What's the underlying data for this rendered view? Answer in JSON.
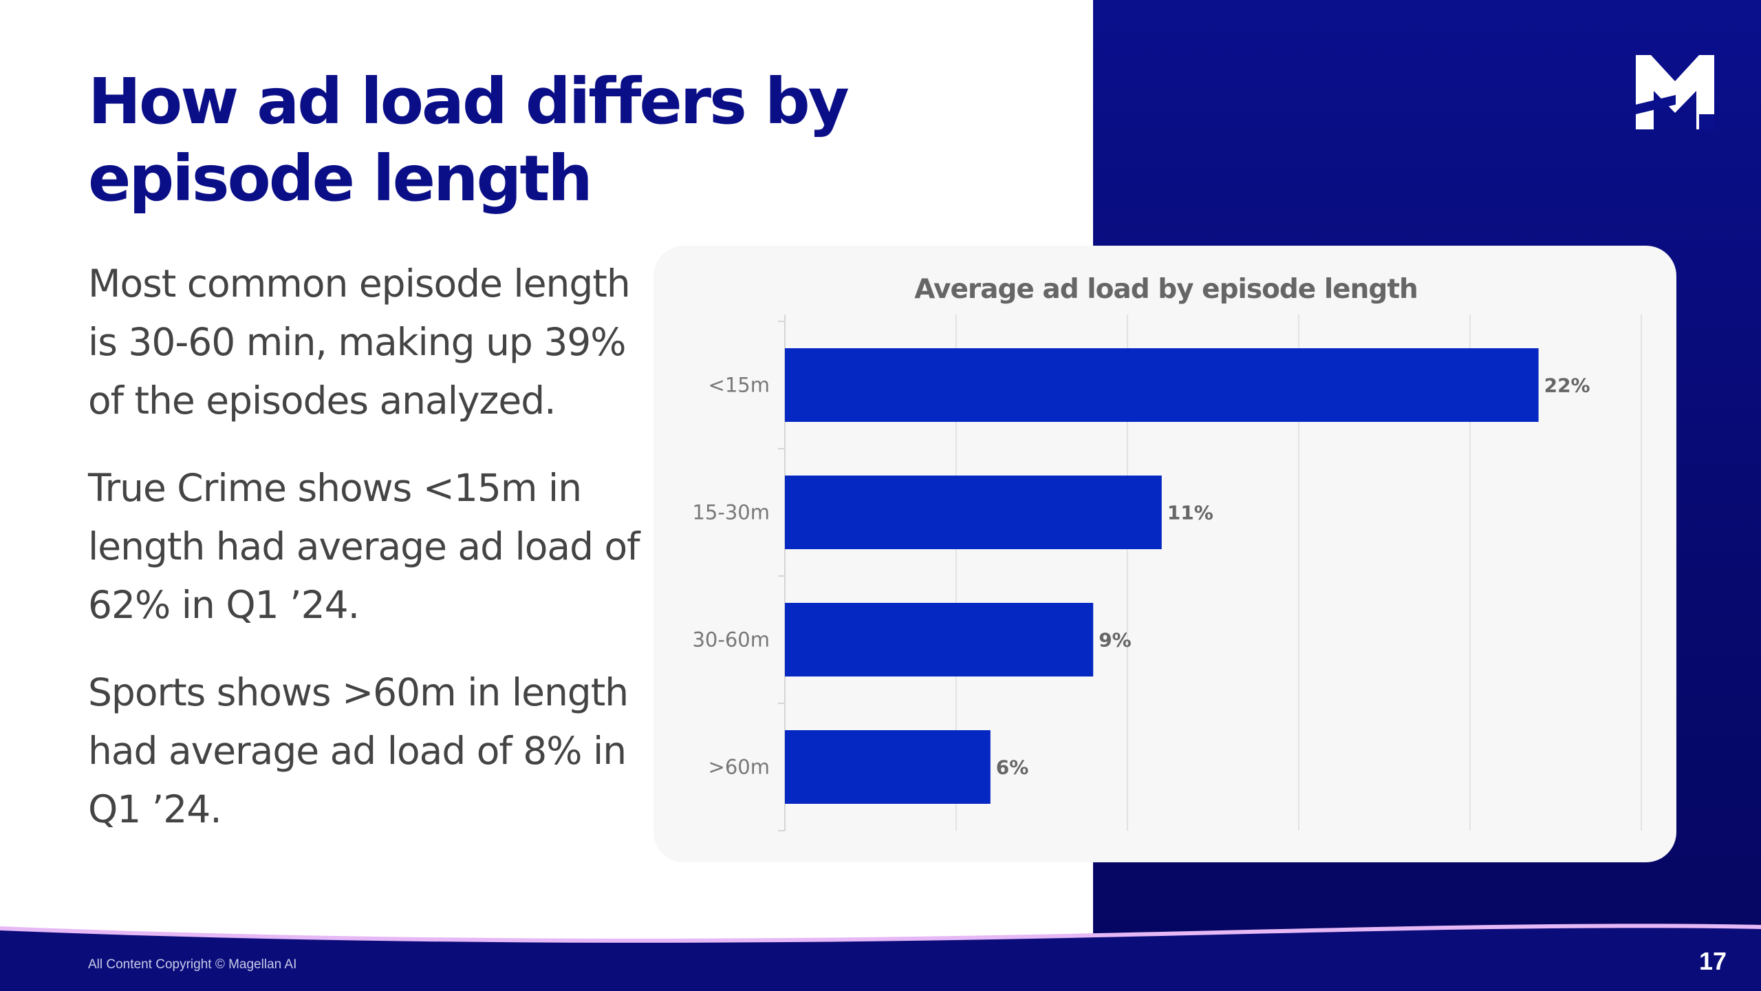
{
  "slide": {
    "title": "How ad load differs by episode length",
    "paragraphs": [
      "Most common episode length is 30-60 min, making up 39% of the episodes analyzed.",
      "True Crime shows <15m in length had average ad load of 62% in Q1 ’24.",
      "Sports shows >60m in length had average ad load of 8% in Q1 ’24."
    ],
    "footer": {
      "copyright": "All Content Copyright © Magellan AI",
      "page_number": "17"
    },
    "logo_icon": "magellan-m-logo-icon"
  },
  "colors": {
    "title": "#0b0f87",
    "panel": "#0a0f8c",
    "bar": "#0527c2",
    "footer_accent": "#e6b8f5"
  },
  "chart_data": {
    "type": "bar",
    "orientation": "horizontal",
    "title": "Average ad load by episode length",
    "categories": [
      "<15m",
      "15-30m",
      "30-60m",
      ">60m"
    ],
    "values": [
      22,
      11,
      9,
      6
    ],
    "value_labels": [
      "22%",
      "11%",
      "9%",
      "6%"
    ],
    "value_unit": "%",
    "xlim": [
      0,
      25
    ],
    "gridlines": true,
    "legend": false
  }
}
